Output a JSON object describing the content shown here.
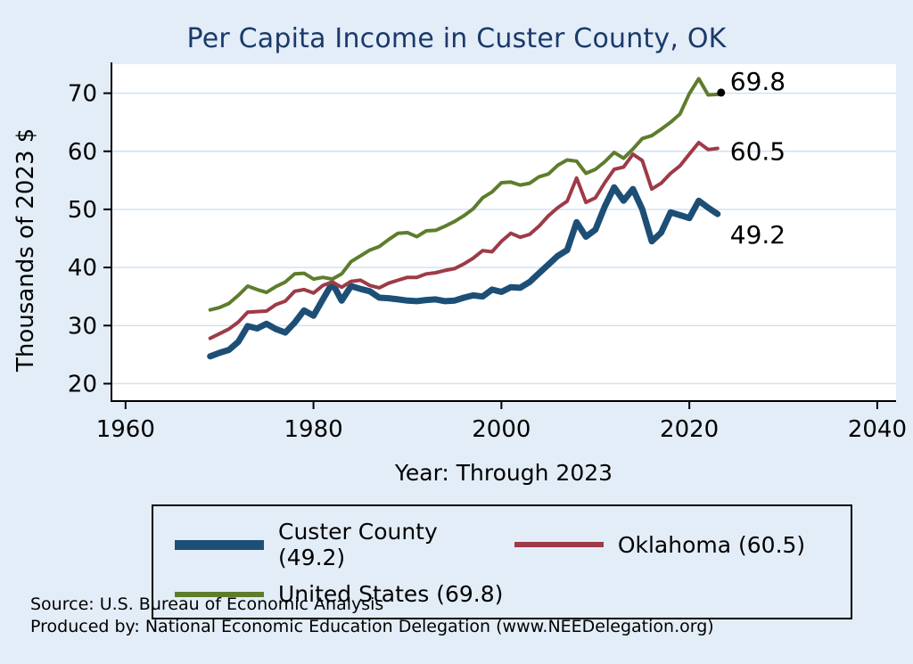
{
  "chart_data": {
    "type": "line",
    "title": "Per Capita Income in Custer County, OK",
    "xlabel": "Year: Through 2023",
    "ylabel": "Thousands of 2023 $",
    "xlim": [
      1958.5,
      2042
    ],
    "ylim": [
      17,
      75
    ],
    "xticks": [
      1960,
      1980,
      2000,
      2020,
      2040
    ],
    "yticks": [
      20,
      30,
      40,
      50,
      60,
      70
    ],
    "grid": "horizontal",
    "legend_position": "bottom",
    "x": [
      1969,
      1970,
      1971,
      1972,
      1973,
      1974,
      1975,
      1976,
      1977,
      1978,
      1979,
      1980,
      1981,
      1982,
      1983,
      1984,
      1985,
      1986,
      1987,
      1988,
      1989,
      1990,
      1991,
      1992,
      1993,
      1994,
      1995,
      1996,
      1997,
      1998,
      1999,
      2000,
      2001,
      2002,
      2003,
      2004,
      2005,
      2006,
      2007,
      2008,
      2009,
      2010,
      2011,
      2012,
      2013,
      2014,
      2015,
      2016,
      2017,
      2018,
      2019,
      2020,
      2021,
      2022,
      2023
    ],
    "series": [
      {
        "name": "Custer County",
        "legend_label": "Custer County (49.2)",
        "color": "#1d4f76",
        "width": 7,
        "end_label": "49.2",
        "end_label_dy": 24,
        "end_marker": false,
        "values": [
          24.7,
          25.3,
          25.8,
          27.2,
          29.9,
          29.5,
          30.3,
          29.4,
          28.8,
          30.5,
          32.6,
          31.7,
          34.5,
          37.3,
          34.3,
          36.8,
          36.3,
          35.9,
          34.8,
          34.7,
          34.5,
          34.3,
          34.2,
          34.4,
          34.5,
          34.2,
          34.3,
          34.8,
          35.2,
          35.0,
          36.2,
          35.8,
          36.6,
          36.5,
          37.5,
          39.0,
          40.5,
          42.0,
          43.0,
          47.8,
          45.3,
          46.5,
          50.5,
          53.8,
          51.5,
          53.5,
          50.0,
          44.5,
          46.0,
          49.5,
          49.0,
          48.5,
          51.5,
          50.3,
          49.2
        ]
      },
      {
        "name": "Oklahoma",
        "legend_label": "Oklahoma (60.5)",
        "color": "#9d3b47",
        "width": 4,
        "end_label": "60.5",
        "end_label_dy": 4,
        "end_marker": false,
        "values": [
          27.8,
          28.6,
          29.4,
          30.6,
          32.3,
          32.4,
          32.5,
          33.6,
          34.2,
          35.9,
          36.2,
          35.6,
          36.9,
          37.5,
          36.6,
          37.6,
          37.8,
          36.9,
          36.5,
          37.3,
          37.8,
          38.3,
          38.3,
          38.9,
          39.1,
          39.5,
          39.8,
          40.6,
          41.6,
          42.9,
          42.7,
          44.5,
          45.9,
          45.2,
          45.7,
          47.1,
          48.9,
          50.3,
          51.4,
          55.4,
          51.2,
          52.0,
          54.6,
          56.9,
          57.3,
          59.5,
          58.4,
          53.5,
          54.5,
          56.2,
          57.5,
          59.5,
          61.5,
          60.3,
          60.5
        ]
      },
      {
        "name": "United States",
        "legend_label": "United States (69.8)",
        "color": "#5e7d2c",
        "width": 4,
        "end_label": "69.8",
        "end_label_dy": -14,
        "end_marker": true,
        "values": [
          32.7,
          33.1,
          33.8,
          35.2,
          36.8,
          36.2,
          35.7,
          36.7,
          37.5,
          38.9,
          39.0,
          38.0,
          38.3,
          38.0,
          38.9,
          41.0,
          42.0,
          43.0,
          43.6,
          44.8,
          45.9,
          46.0,
          45.3,
          46.3,
          46.4,
          47.1,
          47.9,
          48.9,
          50.1,
          52.0,
          53.0,
          54.6,
          54.7,
          54.2,
          54.5,
          55.6,
          56.1,
          57.6,
          58.5,
          58.3,
          56.2,
          56.9,
          58.2,
          59.8,
          58.8,
          60.4,
          62.2,
          62.7,
          63.8,
          65.0,
          66.4,
          69.9,
          72.5,
          69.7,
          69.8
        ]
      }
    ]
  },
  "footnotes": [
    "Source: U.S. Bureau of Economic Analysis",
    "Produced by: National Economic Education Delegation (www.NEEDelegation.org)"
  ],
  "colors": {
    "background": "#e3edf8",
    "title": "#1b3a6a",
    "plot_bg": "#ffffff",
    "grid": "#cfe0f1",
    "axis": "#000000",
    "end_label_color": "#000000"
  }
}
